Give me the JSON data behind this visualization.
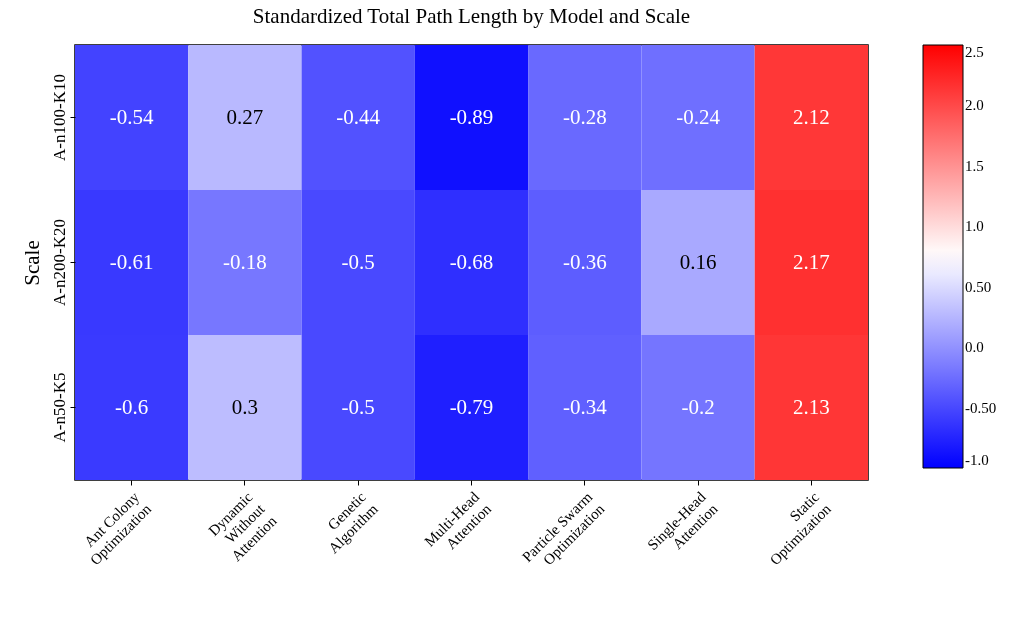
{
  "chart_data": {
    "type": "heatmap",
    "title": "Standardized Total Path Length by Model and Scale",
    "ylabel": "Scale",
    "categories": [
      "Ant Colony Optimization",
      "Dynamic Without Attention",
      "Genetic Algorithm",
      "Multi-Head Attention",
      "Particle Swarm Optimization",
      "Single-Head Attention",
      "Static Optimization"
    ],
    "y_categories": [
      "A-n100-K10",
      "A-n200-K20",
      "A-n50-K5"
    ],
    "cells": [
      [
        -0.54,
        0.27,
        -0.44,
        -0.89,
        -0.28,
        -0.24,
        2.12
      ],
      [
        -0.61,
        -0.18,
        -0.5,
        -0.68,
        -0.36,
        0.16,
        2.17
      ],
      [
        -0.6,
        0.3,
        -0.5,
        -0.79,
        -0.34,
        -0.2,
        2.13
      ]
    ],
    "data_labels": true,
    "clim": [
      -1,
      2.5
    ],
    "cticks": [
      {
        "value": -1,
        "label": "-1.0"
      },
      {
        "value": -0.5,
        "label": "-0.50"
      },
      {
        "value": 0,
        "label": "0.0"
      },
      {
        "value": 0.5,
        "label": "0.50"
      },
      {
        "value": 1,
        "label": "1.0"
      },
      1.5,
      {
        "value": 2,
        "label": "2.0"
      },
      2.5
    ]
  }
}
